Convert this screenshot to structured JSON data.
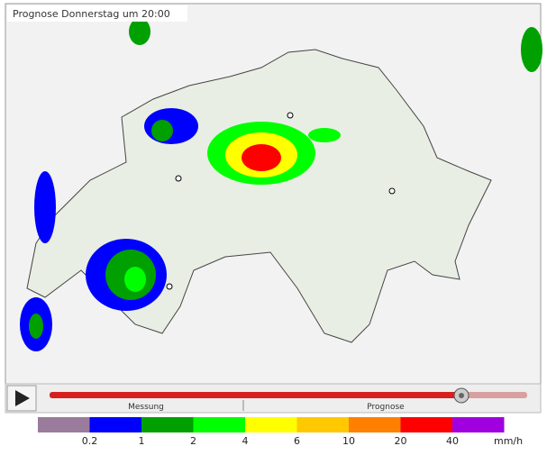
{
  "header": {
    "title": "Prognose Donnerstag um 20:00"
  },
  "timeline": {
    "past_label": "Messung",
    "future_label": "Prognose"
  },
  "legend": {
    "unit": "mm/h",
    "colors": [
      "#9a7b9c",
      "#0000ff",
      "#00a000",
      "#00ff00",
      "#ffff00",
      "#ffc800",
      "#ff8000",
      "#ff0000",
      "#a000e0"
    ],
    "labels": [
      "0.2",
      "1",
      "2",
      "4",
      "6",
      "10",
      "20",
      "40"
    ]
  }
}
